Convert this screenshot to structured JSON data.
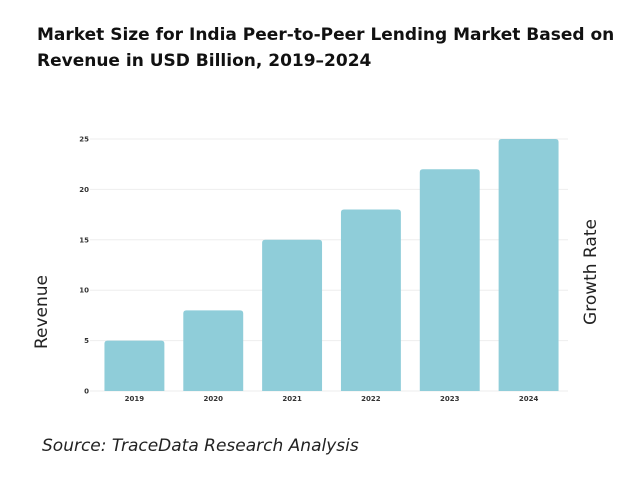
{
  "title": "Market Size for India Peer-to-Peer Lending Market Based on Revenue in USD Billion, 2019–2024",
  "source": "Source: TraceData Research Analysis",
  "colors": {
    "bar": "#8fcdd9",
    "grid": "#eeeeee",
    "text": "#222222"
  },
  "chart_data": {
    "type": "bar",
    "title": "Market Size for India Peer-to-Peer Lending Market Based on Revenue in USD Billion, 2019–2024",
    "categories": [
      "2019",
      "2020",
      "2021",
      "2022",
      "2023",
      "2024"
    ],
    "values": [
      5,
      8,
      15,
      18,
      22,
      25
    ],
    "ylabel": "Revenue",
    "y2label": "Growth Rate",
    "ylim": [
      0,
      25
    ],
    "yticks": [
      0,
      5,
      10,
      15,
      20,
      25
    ],
    "grid": true
  }
}
